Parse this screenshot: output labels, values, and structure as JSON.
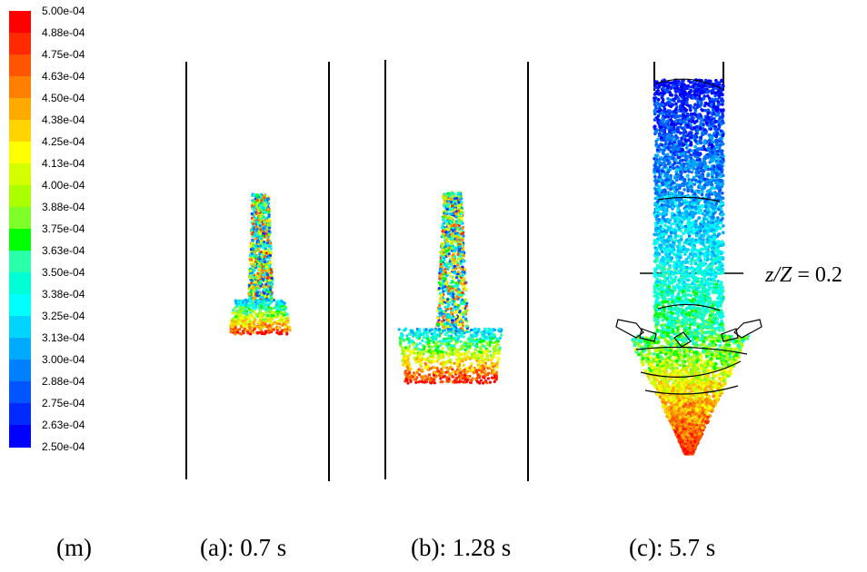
{
  "colorbar": {
    "labels": [
      "5.00e-04",
      "4.88e-04",
      "4.75e-04",
      "4.63e-04",
      "4.50e-04",
      "4.38e-04",
      "4.25e-04",
      "4.13e-04",
      "4.00e-04",
      "3.88e-04",
      "3.75e-04",
      "3.63e-04",
      "3.50e-04",
      "3.38e-04",
      "3.25e-04",
      "3.13e-04",
      "3.00e-04",
      "2.88e-04",
      "2.75e-04",
      "2.63e-04",
      "2.50e-04"
    ],
    "colors": [
      "#ff0000",
      "#ff2a00",
      "#ff5500",
      "#ff7f00",
      "#ffaa00",
      "#ffd400",
      "#ffff00",
      "#d4ff00",
      "#aaff00",
      "#7fff2a",
      "#00ff00",
      "#2affaa",
      "#00ffd4",
      "#00ffff",
      "#00d4ff",
      "#00aaff",
      "#007fff",
      "#0055ff",
      "#002aff",
      "#0000ff"
    ]
  },
  "captions": {
    "m": "(m)",
    "a": "(a): 0.7 s",
    "b": "(b): 1.28 s",
    "c": "(c): 5.7 s"
  },
  "annotation": {
    "label_italic": "z/Z",
    "label_rest": " = 0.2"
  }
}
